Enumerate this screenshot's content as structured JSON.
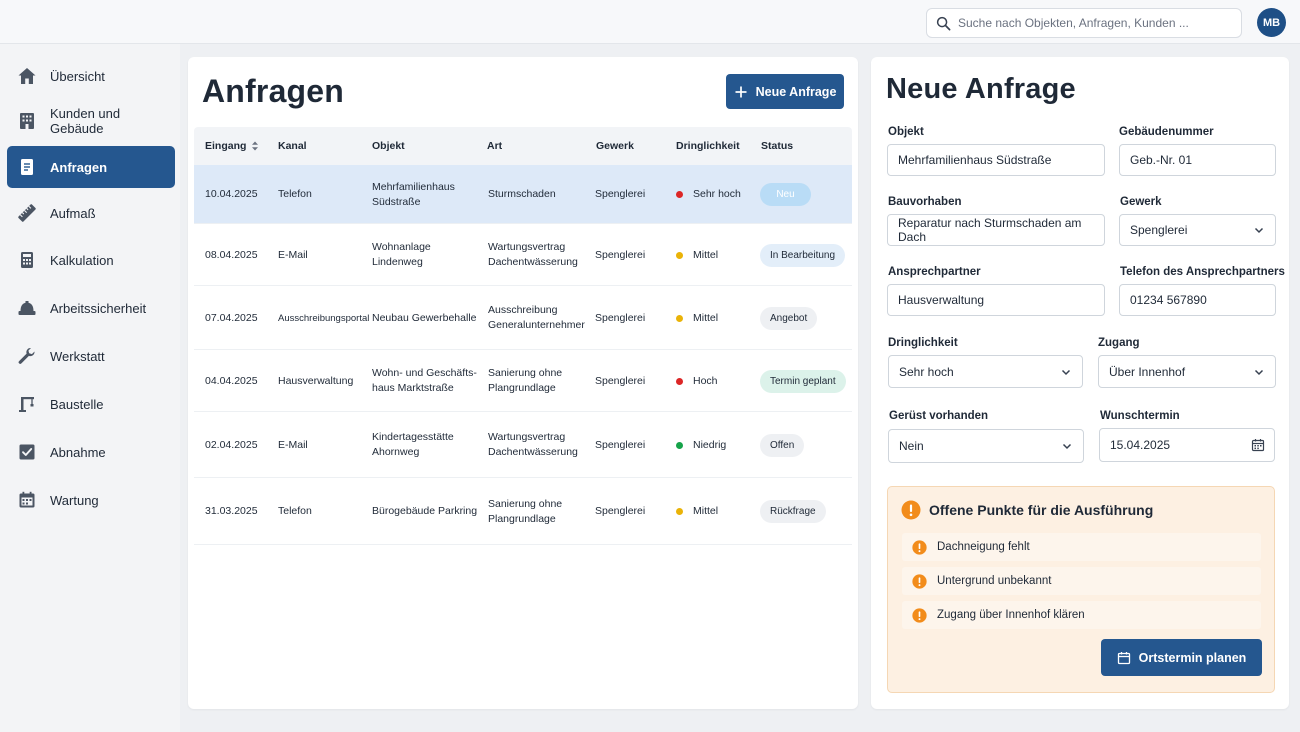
{
  "colors": {
    "primary": "#25578f",
    "urgency_red": "#dc2626",
    "urgency_yellow": "#eab308",
    "urgency_green": "#16a34a",
    "warning_orange": "#f28c1b"
  },
  "header": {
    "search_placeholder": "Suche nach Objekten, Anfragen, Kunden ...",
    "avatar_initials": "MB"
  },
  "sidebar": {
    "items": [
      {
        "label": "Übersicht",
        "icon": "home-icon"
      },
      {
        "label": "Kunden und Gebäude",
        "icon": "building-icon"
      },
      {
        "label": "Anfragen",
        "icon": "document-icon",
        "active": true
      },
      {
        "label": "Aufmaß",
        "icon": "ruler-icon"
      },
      {
        "label": "Kalkulation",
        "icon": "calculator-icon"
      },
      {
        "label": "Arbeitssicherheit",
        "icon": "safety-helmet-icon"
      },
      {
        "label": "Werkstatt",
        "icon": "wrench-icon"
      },
      {
        "label": "Baustelle",
        "icon": "crane-icon"
      },
      {
        "label": "Abnahme",
        "icon": "checkbox-icon"
      },
      {
        "label": "Wartung",
        "icon": "calendar-icon"
      }
    ]
  },
  "list": {
    "title": "Anfragen",
    "new_button": "Neue Anfrage",
    "columns": [
      "Eingang",
      "Kanal",
      "Objekt",
      "Art",
      "Gewerk",
      "Dringlichkeit",
      "Status"
    ],
    "rows": [
      {
        "eingang": "10.04.2025",
        "kanal": "Telefon",
        "objekt": "Mehrfamilienhaus\nSüdstraße",
        "art": "Sturmschaden",
        "gewerk": "Spenglerei",
        "dringlichkeit": "Sehr hoch",
        "urgency_color": "#dc2626",
        "status": "Neu",
        "status_bg": "#b9dcf6",
        "status_fg": "#ffffff"
      },
      {
        "eingang": "08.04.2025",
        "kanal": "E-Mail",
        "objekt": "Wohnanlage\nLindenweg",
        "art": "Wartungsvertrag\nDachentwässerung",
        "gewerk": "Spenglerei",
        "dringlichkeit": "Mittel",
        "urgency_color": "#eab308",
        "status": "In Bearbeitung",
        "status_bg": "#e3eef9",
        "status_fg": "#1f2937"
      },
      {
        "eingang": "07.04.2025",
        "kanal": "Ausschreibungsportal",
        "objekt": "Neubau Gewerbehalle",
        "art": "Ausschreibung\nGeneralunternehmer",
        "gewerk": "Spenglerei",
        "dringlichkeit": "Mittel",
        "urgency_color": "#eab308",
        "status": "Angebot",
        "status_bg": "#eef0f3",
        "status_fg": "#1f2937"
      },
      {
        "eingang": "04.04.2025",
        "kanal": "Hausverwaltung",
        "objekt": "Wohn- und Geschäfts-\nhaus Marktstraße",
        "art": "Sanierung ohne\nPlangrundlage",
        "gewerk": "Spenglerei",
        "dringlichkeit": "Hoch",
        "urgency_color": "#dc2626",
        "status": "Termin geplant",
        "status_bg": "#dcf2ea",
        "status_fg": "#1f2937"
      },
      {
        "eingang": "02.04.2025",
        "kanal": "E-Mail",
        "objekt": "Kindertagesstätte\nAhornweg",
        "art": "Wartungsvertrag\nDachentwässerung",
        "gewerk": "Spenglerei",
        "dringlichkeit": "Niedrig",
        "urgency_color": "#16a34a",
        "status": "Offen",
        "status_bg": "#eef0f3",
        "status_fg": "#1f2937"
      },
      {
        "eingang": "31.03.2025",
        "kanal": "Telefon",
        "objekt": "Bürogebäude Parkring",
        "art": "Sanierung ohne\nPlangrundlage",
        "gewerk": "Spenglerei",
        "dringlichkeit": "Mittel",
        "urgency_color": "#eab308",
        "status": "Rückfrage",
        "status_bg": "#eef0f3",
        "status_fg": "#1f2937"
      }
    ]
  },
  "form": {
    "title": "Neue Anfrage",
    "fields": {
      "objekt": {
        "label": "Objekt",
        "value": "Mehrfamilienhaus Südstraße"
      },
      "gebaeudenummer": {
        "label": "Gebäudenummer",
        "value": "Geb.-Nr. 01"
      },
      "bauvorhaben": {
        "label": "Bauvorhaben",
        "value": "Reparatur nach Sturmschaden am Dach"
      },
      "gewerk": {
        "label": "Gewerk",
        "value": "Spenglerei"
      },
      "ansprechpartner": {
        "label": "Ansprechpartner",
        "value": "Hausverwaltung"
      },
      "telefon": {
        "label": "Telefon des Ansprechpartners",
        "value": "01234 567890"
      },
      "dringlichkeit": {
        "label": "Dringlichkeit",
        "value": "Sehr hoch"
      },
      "zugang": {
        "label": "Zugang",
        "value": "Über Innenhof"
      },
      "geruest": {
        "label": "Gerüst vorhanden",
        "value": "Nein"
      },
      "wunschtermin": {
        "label": "Wunschtermin",
        "value": "15.04.2025"
      }
    },
    "open_points": {
      "title": "Offene Punkte für die Ausführung",
      "items": [
        "Dachneigung fehlt",
        "Untergrund unbekannt",
        "Zugang über Innenhof klären"
      ]
    },
    "schedule_button": "Ortstermin planen"
  }
}
